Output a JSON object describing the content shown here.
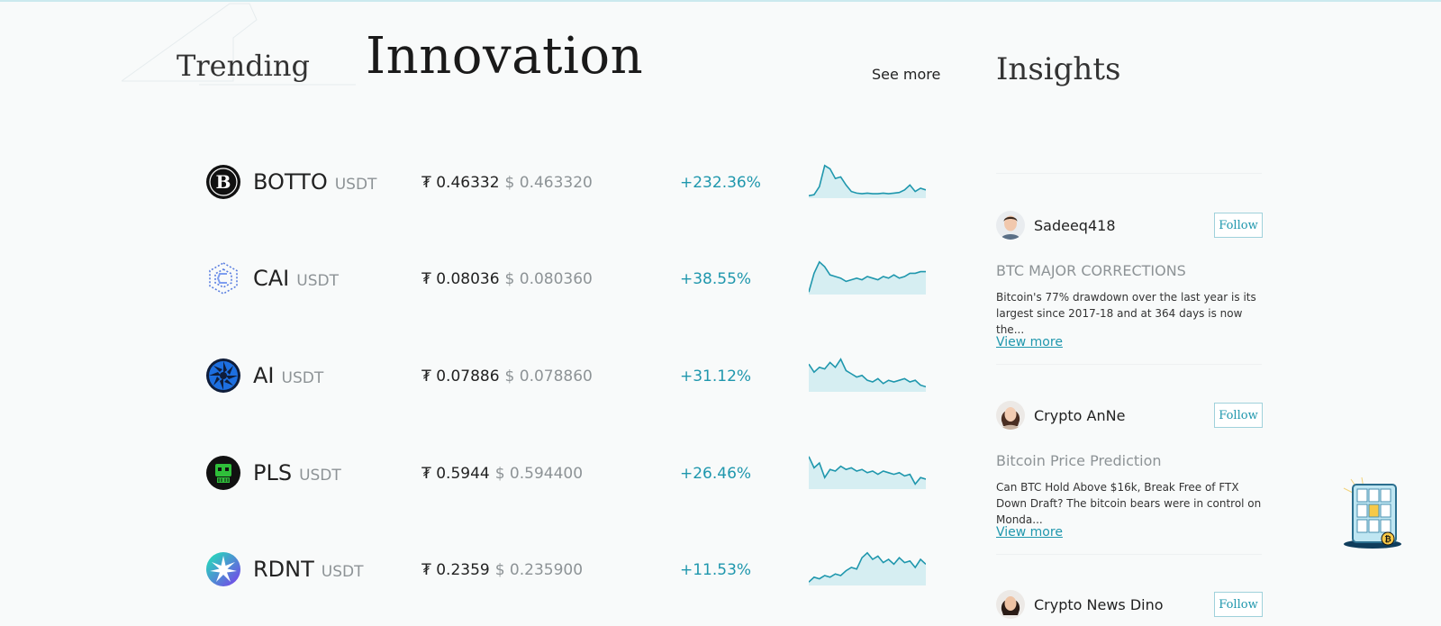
{
  "header": {
    "trending": "Trending",
    "innovation": "Innovation",
    "see_more": "See more",
    "insights": "Insights"
  },
  "coins": [
    {
      "symbol": "BOTTO",
      "quote": "USDT",
      "price": "₮ 0.46332",
      "usd": "$ 0.463320",
      "change": "+232.36%",
      "icon": "botto-logo-icon",
      "spark": [
        0.02,
        0.05,
        0.3,
        0.95,
        0.85,
        0.55,
        0.6,
        0.35,
        0.15,
        0.1,
        0.08,
        0.1,
        0.08,
        0.08,
        0.1,
        0.08,
        0.1,
        0.12,
        0.2,
        0.35,
        0.15,
        0.25,
        0.2
      ]
    },
    {
      "symbol": "CAI",
      "quote": "USDT",
      "price": "₮ 0.08036",
      "usd": "$ 0.080360",
      "change": "+38.55%",
      "icon": "cai-logo-icon",
      "spark": [
        0.02,
        0.6,
        0.95,
        0.8,
        0.55,
        0.5,
        0.45,
        0.35,
        0.4,
        0.45,
        0.4,
        0.5,
        0.45,
        0.4,
        0.5,
        0.45,
        0.55,
        0.45,
        0.5,
        0.6,
        0.6,
        0.65,
        0.65
      ]
    },
    {
      "symbol": "AI",
      "quote": "USDT",
      "price": "₮ 0.07886",
      "usd": "$ 0.078860",
      "change": "+31.12%",
      "icon": "ai-logo-icon",
      "spark": [
        0.8,
        0.55,
        0.7,
        0.65,
        0.85,
        0.7,
        0.95,
        0.6,
        0.5,
        0.4,
        0.45,
        0.3,
        0.25,
        0.35,
        0.2,
        0.3,
        0.25,
        0.3,
        0.35,
        0.25,
        0.3,
        0.15,
        0.1
      ]
    },
    {
      "symbol": "PLS",
      "quote": "USDT",
      "price": "₮ 0.5944",
      "usd": "$ 0.594400",
      "change": "+26.46%",
      "icon": "pls-logo-icon",
      "spark": [
        0.95,
        0.6,
        0.75,
        0.3,
        0.55,
        0.5,
        0.65,
        0.55,
        0.6,
        0.5,
        0.55,
        0.45,
        0.5,
        0.4,
        0.5,
        0.45,
        0.4,
        0.45,
        0.35,
        0.4,
        0.1,
        0.3,
        0.25
      ]
    },
    {
      "symbol": "RDNT",
      "quote": "USDT",
      "price": "₮ 0.2359",
      "usd": "$ 0.235900",
      "change": "+11.53%",
      "icon": "rdnt-logo-icon",
      "spark": [
        0.05,
        0.2,
        0.15,
        0.25,
        0.2,
        0.3,
        0.25,
        0.4,
        0.5,
        0.45,
        0.8,
        0.95,
        0.75,
        0.85,
        0.65,
        0.75,
        0.6,
        0.8,
        0.65,
        0.7,
        0.5,
        0.75,
        0.6
      ]
    }
  ],
  "insights": [
    {
      "author": "Sadeeq418",
      "follow": "Follow",
      "title": "BTC MAJOR CORRECTIONS",
      "body": "Bitcoin's 77% drawdown over the last year is its largest since 2017-18 and at 364 days is now the...",
      "view_more": "View more",
      "avatar": "male-avatar-icon"
    },
    {
      "author": "Crypto AnNe",
      "follow": "Follow",
      "title": "Bitcoin Price Prediction",
      "body": "Can BTC Hold Above $16k, Break Free of FTX Down Draft? The bitcoin bears were in control on Monda...",
      "view_more": "View more",
      "avatar": "female-avatar-icon"
    },
    {
      "author": "Crypto News Dino",
      "follow": "Follow",
      "avatar": "female-avatar-icon"
    }
  ],
  "colors": {
    "accent": "#1f97ad",
    "muted": "#8d9396",
    "spark_fill": "#d6eef2"
  }
}
